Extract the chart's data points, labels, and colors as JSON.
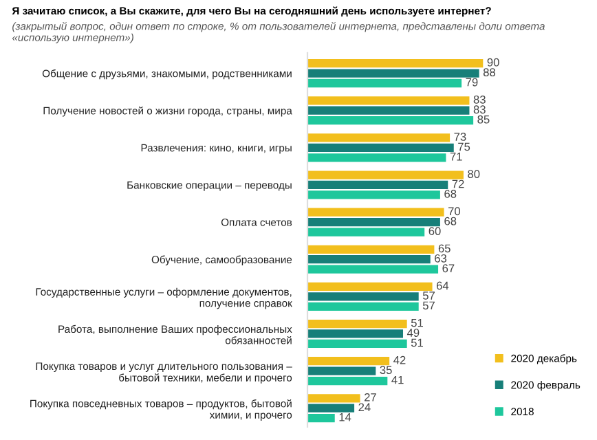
{
  "chart_data": {
    "type": "bar",
    "orientation": "horizontal",
    "title": "Я зачитаю список, а Вы скажите, для чего Вы на сегодняшний день используете интернет?",
    "subtitle": "(закрытый вопрос, один ответ по строке, % от пользователей интернета, представлены доли ответа «использую интернет»)",
    "categories": [
      "Общение с друзьями, знакомыми, родственниками",
      "Получение новостей о жизни города, страны, мира",
      "Развлечения: кино, книги, игры",
      "Банковские операции – переводы",
      "Оплата счетов",
      "Обучение, самообразование",
      "Государственные услуги – оформление документов,\nполучение справок",
      "Работа, выполнение Ваших профессиональных\nобязанностей",
      "Покупка товаров и услуг длительного пользования –\nбытовой техники, мебели и прочего",
      "Покупка повседневных товаров – продуктов, бытовой\nхимии, и прочего"
    ],
    "series": [
      {
        "name": "2020 декабрь",
        "color": "#f2bf1d",
        "values": [
          90,
          83,
          73,
          80,
          70,
          65,
          64,
          51,
          42,
          27
        ]
      },
      {
        "name": "2020 февраль",
        "color": "#177f79",
        "values": [
          88,
          83,
          75,
          72,
          68,
          63,
          57,
          49,
          35,
          24
        ]
      },
      {
        "name": "2018",
        "color": "#1ec79c",
        "values": [
          79,
          85,
          71,
          68,
          60,
          67,
          57,
          51,
          41,
          14
        ]
      }
    ],
    "data_labels": true,
    "legend": "bottom right"
  }
}
